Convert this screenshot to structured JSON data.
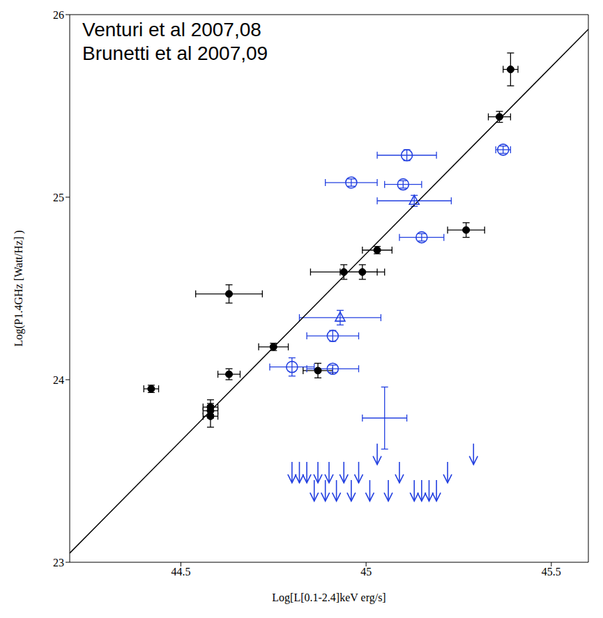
{
  "chart_data": {
    "type": "scatter",
    "annotations": [
      "Venturi et al 2007,08",
      "Brunetti et al 2007,09"
    ],
    "x_label": "Log[L[0.1-2.4]keV erg/s]",
    "y_label": "Log(P1.4GHz [Watt/Hz] )",
    "xlim": [
      44.2,
      45.6
    ],
    "xticks": [
      44.5,
      45,
      45.5
    ],
    "ylim": [
      23,
      26
    ],
    "yticks": [
      23,
      24,
      25,
      26
    ],
    "grid": false,
    "series": [
      {
        "type": "line",
        "color": "#000000",
        "marker": "none",
        "line_style": "solid",
        "x": [
          44.2,
          45.6
        ],
        "y": [
          23.05,
          25.92
        ]
      },
      {
        "color": "#000000",
        "marker": "circle",
        "x": [
          44.42,
          44.63,
          44.63,
          44.58,
          44.58,
          44.58,
          44.75,
          44.87,
          44.94,
          44.99,
          45.03,
          45.27,
          45.36,
          45.39
        ],
        "y": [
          23.95,
          24.47,
          24.03,
          23.85,
          23.83,
          23.8,
          24.18,
          24.05,
          24.59,
          24.59,
          24.71,
          24.82,
          25.44,
          25.7
        ],
        "x_err": [
          0.02,
          0.09,
          0.03,
          0.02,
          0.02,
          0.02,
          0.04,
          0.04,
          0.09,
          0.06,
          0.04,
          0.05,
          0.03,
          0.02
        ],
        "y_err": [
          0.02,
          0.05,
          0.03,
          0.04,
          0.04,
          0.06,
          0.02,
          0.04,
          0.04,
          0.04,
          0.02,
          0.04,
          0.03,
          0.09
        ]
      },
      {
        "color": "#2340e0",
        "marker": "open_circle",
        "x": [
          44.96,
          45.1,
          45.11,
          45.37,
          45.15,
          44.91,
          44.8,
          44.91
        ],
        "y": [
          25.08,
          25.07,
          25.23,
          25.26,
          24.78,
          24.24,
          24.07,
          24.06
        ],
        "x_err": [
          0.07,
          0.05,
          0.08,
          0.02,
          0.06,
          0.07,
          0.06,
          0.07
        ],
        "y_err": [
          0.02,
          0.02,
          0.03,
          0.02,
          0.02,
          0.03,
          0.05,
          0.02
        ]
      },
      {
        "color": "#2340e0",
        "marker": "triangle",
        "x": [
          45.13,
          44.93
        ],
        "y": [
          24.98,
          24.34
        ],
        "x_err": [
          0.1,
          0.11
        ],
        "y_err": [
          0.03,
          0.04
        ]
      },
      {
        "color": "#2340e0",
        "marker": "none",
        "x": [
          45.05
        ],
        "y": [
          23.79
        ],
        "x_err": [
          0.06
        ],
        "y_err": [
          0.17
        ]
      },
      {
        "color": "#2340e0",
        "marker": "upper_limit",
        "x": [
          44.8,
          44.82,
          44.84,
          44.86,
          44.87,
          44.89,
          44.9,
          44.92,
          44.94,
          44.96,
          44.98,
          45.01,
          45.03,
          45.06,
          45.09,
          45.13,
          45.15,
          45.17,
          45.19,
          45.22,
          45.29
        ],
        "y": [
          23.55,
          23.55,
          23.55,
          23.45,
          23.55,
          23.45,
          23.55,
          23.45,
          23.55,
          23.45,
          23.55,
          23.45,
          23.65,
          23.45,
          23.55,
          23.45,
          23.45,
          23.45,
          23.45,
          23.55,
          23.65
        ]
      }
    ]
  }
}
